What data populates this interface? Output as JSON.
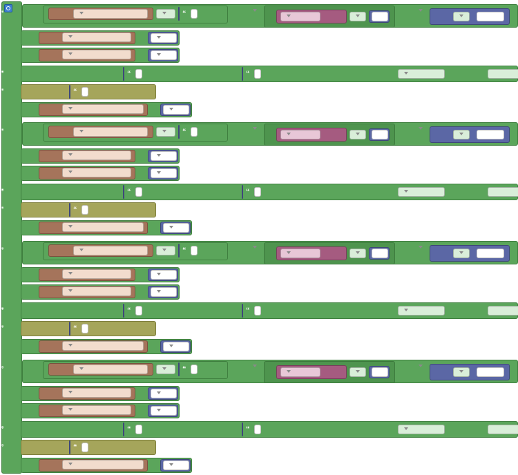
{
  "labels": {
    "if": "If",
    "do": "Do",
    "else_if": "Else if",
    "set": "Set",
    "and": "and",
    "send_notification": "Send notification with subject:",
    "and_message": "and message:",
    "through_subsystem": "through subsystem:",
    "with_priority": "with priority:",
    "write_to_log": "Write to log:",
    "temp": "temp.",
    "time": "Time:",
    "mr": "M-R"
  },
  "values": {
    "device_hoger": "Motorvärmare Höger",
    "device_1": "Motorvärmare 1",
    "op_eq": "=",
    "op_le": "≤",
    "code": "0630",
    "sensor": "Hjo THB",
    "on": "On",
    "off": "Off",
    "subject": "Domoticz",
    "subsystem": "all (default)",
    "priority": "-1 (Prowl/",
    "priority_short": "-1 (Prowl/"
  },
  "branches": [
    {
      "keyword": "If",
      "threshold": "-20",
      "time": "03:30",
      "message": "Motorvärmare -20",
      "log": "Motorvärmare -20"
    },
    {
      "keyword": "Else if",
      "threshold": "-15",
      "time": "04:00",
      "message": "Motorvärmare -15",
      "log": "Motorvärmare -15"
    },
    {
      "keyword": "Else if",
      "threshold": "-10",
      "time": "04:30",
      "message": "Motorvärmare -10",
      "log": "Motorvärmare -10"
    },
    {
      "keyword": "Else if",
      "threshold": "-5",
      "time": "05:00",
      "message": "Motorvärmare -5",
      "log": "Motorvärmare -5"
    }
  ],
  "colors": {
    "logic": "#5ba55b",
    "device": "#a5745b",
    "text": "#5b67a5",
    "sensor": "#a55b80",
    "log": "#a5a55b",
    "gear": "#3f7fcf"
  }
}
